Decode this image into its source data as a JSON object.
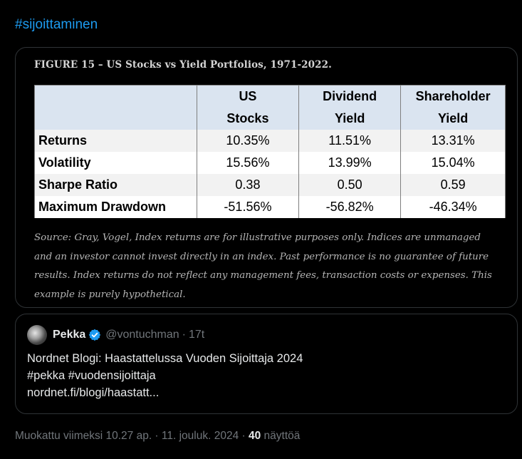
{
  "tweet": {
    "hashtag": "#sijoittaminen"
  },
  "figure": {
    "title": "FIGURE 15 – US Stocks vs Yield Portfolios, 1971-2022.",
    "table": {
      "headers": [
        {
          "line1": "",
          "line2": ""
        },
        {
          "line1": "US",
          "line2": "Stocks"
        },
        {
          "line1": "Dividend",
          "line2": "Yield"
        },
        {
          "line1": "Shareholder",
          "line2": "Yield"
        }
      ],
      "rows": [
        {
          "label": "Returns",
          "values": [
            "10.35%",
            "11.51%",
            "13.31%"
          ]
        },
        {
          "label": "Volatility",
          "values": [
            "15.56%",
            "13.99%",
            "15.04%"
          ]
        },
        {
          "label": "Sharpe Ratio",
          "values": [
            "0.38",
            "0.50",
            "0.59"
          ]
        },
        {
          "label": "Maximum Drawdown",
          "values": [
            "-51.56%",
            "-56.82%",
            "-46.34%"
          ]
        }
      ]
    },
    "source_lines": [
      "Source: Gray, Vogel, Index returns are for illustrative purposes only. Indices are unmanaged",
      "and an investor cannot invest directly in an index. Past performance is no guarantee of future",
      "results. Index returns do not reflect any management fees, transaction costs or expenses. This",
      "example is purely hypothetical."
    ]
  },
  "quote": {
    "name": "Pekka",
    "handle": "@vontuchman",
    "separator": "·",
    "time": "17t",
    "lines": [
      "Nordnet Blogi: Haastattelussa Vuoden Sijoittaja 2024",
      "#pekka #vuodensijoittaja",
      "nordnet.fi/blogi/haastatt..."
    ]
  },
  "footer": {
    "edited": "Muokattu viimeksi 10.27 ap. · 11. jouluk. 2024 ·",
    "views_count": "40",
    "views_label": "näyttöä"
  },
  "colors": {
    "link": "#1d9bf0",
    "verified": "#1d9bf0",
    "header_fill": "#dae4f0"
  }
}
